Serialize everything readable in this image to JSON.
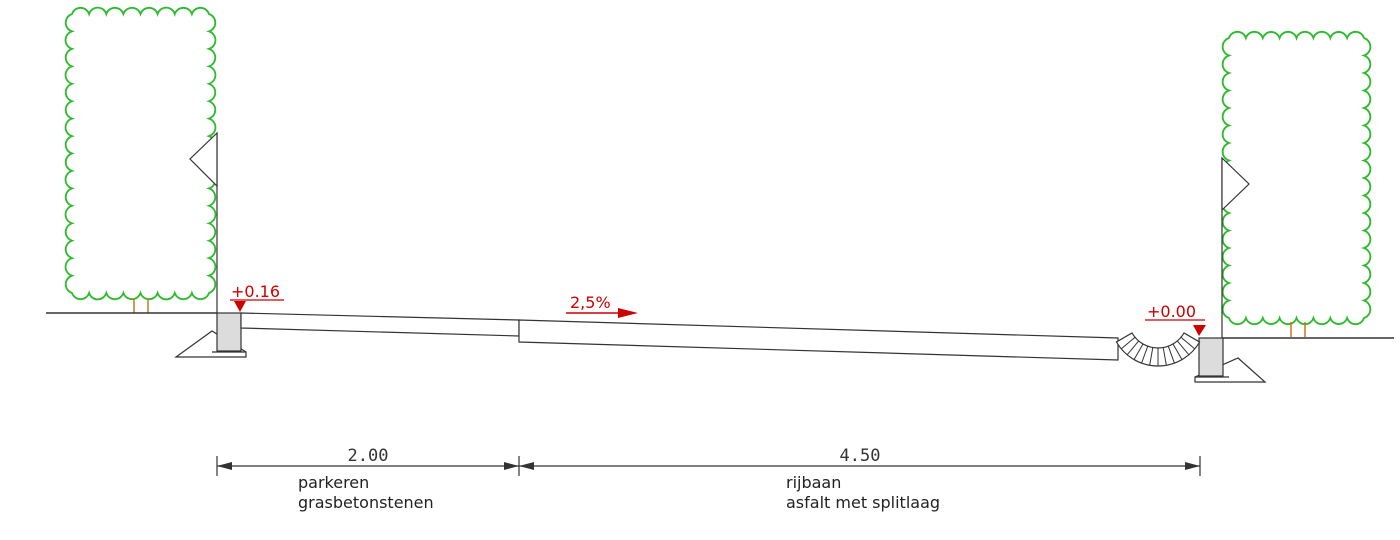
{
  "colors": {
    "line": "#333333",
    "annotation": "#cc0000",
    "tree_crown": "#2dbb2d",
    "tree_trunk": "#c8781e",
    "curb_fill": "#dcdcdc"
  },
  "levels": {
    "left": "+0.16",
    "right": "+0.00"
  },
  "slope": {
    "value": "2,5%",
    "direction": "right"
  },
  "dimensions": [
    {
      "value": "2.00",
      "name": "parkeren",
      "material": "grasbetonstenen"
    },
    {
      "value": "4.50",
      "name": "rijbaan",
      "material": "asfalt met splitlaag"
    }
  ],
  "elements": {
    "trees": 2,
    "lamp_posts": 2,
    "curbs": 2
  }
}
